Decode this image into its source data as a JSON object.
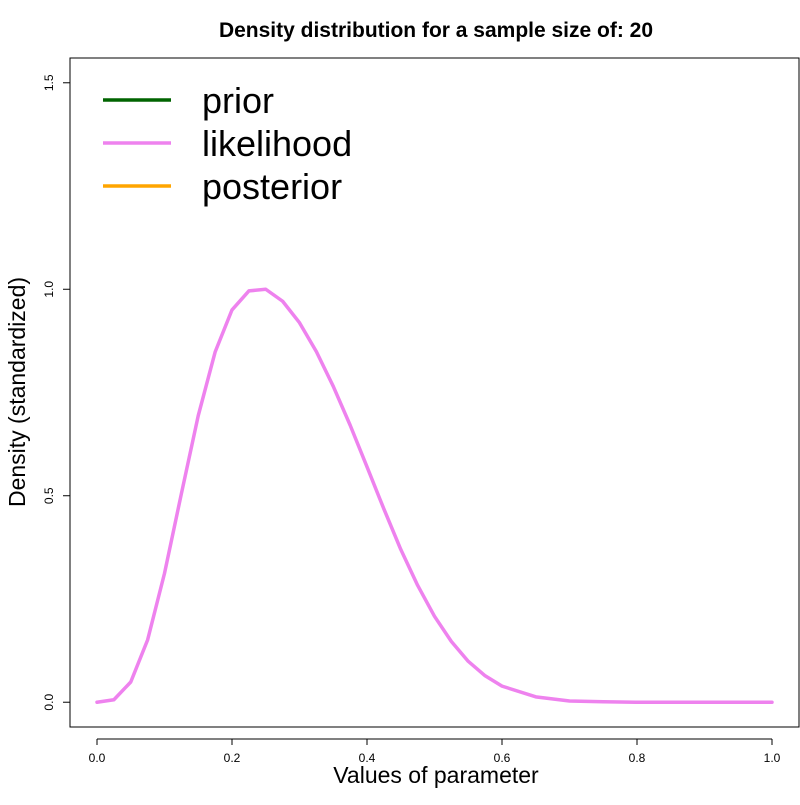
{
  "chart_data": {
    "type": "line",
    "title": "Density distribution for a sample size of: 20",
    "xlabel": "Values of parameter",
    "ylabel": "Density (standardized)",
    "xlim": [
      -0.04,
      1.04
    ],
    "ylim": [
      -0.06,
      1.56
    ],
    "xticks": [
      {
        "value": 0.0,
        "label": "0.0"
      },
      {
        "value": 0.2,
        "label": "0.2"
      },
      {
        "value": 0.4,
        "label": "0.4"
      },
      {
        "value": 0.6,
        "label": "0.6"
      },
      {
        "value": 0.8,
        "label": "0.8"
      },
      {
        "value": 1.0,
        "label": "1.0"
      }
    ],
    "yticks": [
      {
        "value": 0.0,
        "label": "0.0"
      },
      {
        "value": 0.5,
        "label": "0.5"
      },
      {
        "value": 1.0,
        "label": "1.0"
      },
      {
        "value": 1.5,
        "label": "1.5"
      }
    ],
    "grid": false,
    "legend_position": "top-left",
    "series": [
      {
        "name": "prior",
        "color": "#006400",
        "x": [],
        "y": []
      },
      {
        "name": "likelihood",
        "color": "#ee82ee",
        "x": [
          0.0,
          0.025,
          0.05,
          0.075,
          0.1,
          0.125,
          0.15,
          0.175,
          0.2,
          0.225,
          0.25,
          0.275,
          0.3,
          0.325,
          0.35,
          0.375,
          0.4,
          0.425,
          0.45,
          0.475,
          0.5,
          0.525,
          0.55,
          0.575,
          0.6,
          0.65,
          0.7,
          0.75,
          0.8,
          0.85,
          0.9,
          0.95,
          1.0
        ],
        "y": [
          0.0,
          0.006,
          0.049,
          0.151,
          0.312,
          0.505,
          0.694,
          0.848,
          0.95,
          0.996,
          1.0,
          0.971,
          0.919,
          0.849,
          0.765,
          0.671,
          0.57,
          0.468,
          0.37,
          0.283,
          0.208,
          0.147,
          0.099,
          0.064,
          0.039,
          0.013,
          0.003,
          0.001,
          0.0,
          0.0,
          0.0,
          0.0,
          0.0
        ]
      },
      {
        "name": "posterior",
        "color": "#ffa500",
        "x": [],
        "y": []
      }
    ]
  }
}
